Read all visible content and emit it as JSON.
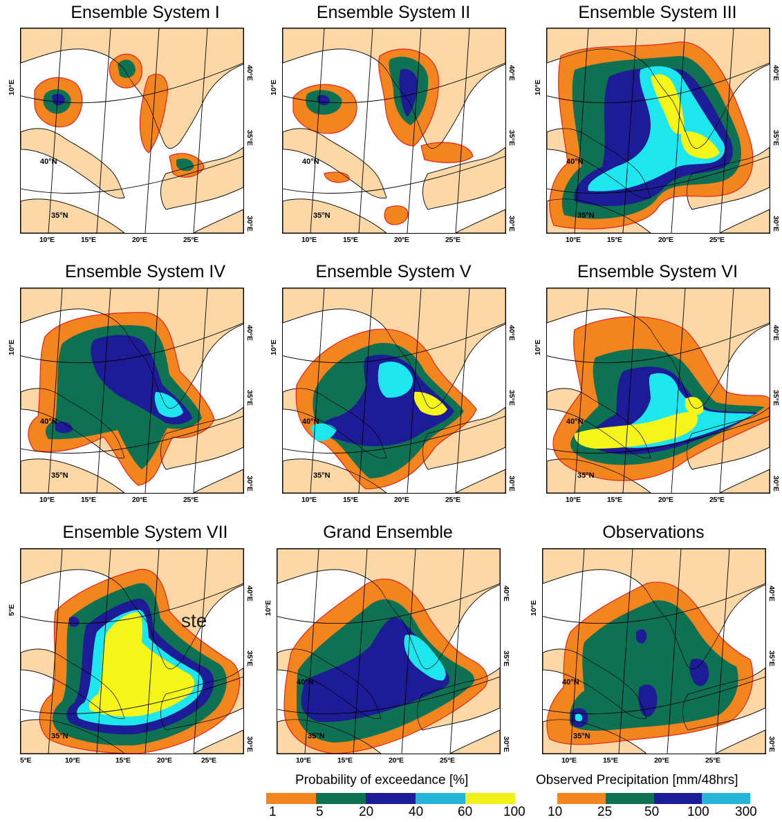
{
  "panels": [
    {
      "title": "Ensemble System I",
      "lat1": "40°N",
      "lat2": "35°N",
      "left_lon": "10°E",
      "right_lons": [
        "40°E",
        "35°E",
        "30°E"
      ],
      "bottom_lons": [
        "10°E",
        "15°E",
        "20°E",
        "25°E"
      ]
    },
    {
      "title": "Ensemble System II",
      "lat1": "40°N",
      "lat2": "35°N",
      "left_lon": "10°E",
      "right_lons": [
        "40°E",
        "35°E",
        "30°E"
      ],
      "bottom_lons": [
        "10°E",
        "15°E",
        "20°E",
        "25°E"
      ]
    },
    {
      "title": "Ensemble System III",
      "lat1": "40°N",
      "lat2": "35°N",
      "left_lon": "10°E",
      "right_lons": [
        "40°E",
        "35°E",
        "30°E"
      ],
      "bottom_lons": [
        "10°E",
        "15°E",
        "20°E",
        "25°E"
      ]
    },
    {
      "title": "Ensemble System IV",
      "lat1": "40°N",
      "lat2": "35°N",
      "left_lon": "10°E",
      "right_lons": [
        "40°E",
        "35°E",
        "30°E"
      ],
      "bottom_lons": [
        "10°E",
        "15°E",
        "20°E",
        "25°E"
      ]
    },
    {
      "title": "Ensemble System V",
      "lat1": "40°N",
      "lat2": "35°N",
      "left_lon": "10°E",
      "right_lons": [
        "40°E",
        "35°E",
        "30°E"
      ],
      "bottom_lons": [
        "10°E",
        "15°E",
        "20°E",
        "25°E"
      ]
    },
    {
      "title": "Ensemble System VI",
      "lat1": "40°N",
      "lat2": "35°N",
      "left_lon": "10°E",
      "right_lons": [
        "40°E",
        "35°E",
        "30°E"
      ],
      "bottom_lons": [
        "10°E",
        "15°E",
        "20°E",
        "25°E"
      ]
    },
    {
      "title": "Ensemble System VII",
      "lat1": "",
      "lat2": "35°N",
      "left_lon": "5°E",
      "right_lons": [
        "40°E",
        "35°E",
        "30°E"
      ],
      "bottom_lons": [
        "5°E",
        "10°E",
        "15°E",
        "20°E",
        "25°E"
      ]
    },
    {
      "title": "Grand Ensemble",
      "lat1": "40°N",
      "lat2": "35°N",
      "left_lon": "10°E",
      "right_lons": [
        "40°E",
        "35°E",
        "30°E"
      ],
      "bottom_lons": [
        "10°E",
        "15°E",
        "20°E",
        "25°E"
      ]
    },
    {
      "title": "Observations",
      "lat1": "40°N",
      "lat2": "35°N",
      "left_lon": "10°E",
      "right_lons": [
        "40°E",
        "35°E",
        "30°E"
      ],
      "bottom_lons": [
        "10°E",
        "15°E",
        "20°E",
        "25°E"
      ]
    }
  ],
  "stray_text": "ste",
  "legend_probability": {
    "title": "Probability of exceedance [%]",
    "ticks": [
      "1",
      "5",
      "20",
      "40",
      "60",
      "100"
    ],
    "colors": [
      "#f4851e",
      "#0d7152",
      "#1d1b95",
      "#27b5d6",
      "#f2f01a"
    ]
  },
  "legend_observed": {
    "title": "Observed Precipitation [mm/48hrs]",
    "ticks": [
      "10",
      "25",
      "50",
      "100",
      "300"
    ],
    "colors": [
      "#f4851e",
      "#0d7152",
      "#1d1b95",
      "#27b5d6"
    ]
  },
  "map_colors": {
    "land": "#fcd8a6",
    "sea": "#ffffff",
    "orange": "#f4851e",
    "green": "#0d7152",
    "blue": "#1d1b95",
    "cyan": "#1ee6ee",
    "yellow": "#f5f51a",
    "outline": "#e8221b"
  }
}
